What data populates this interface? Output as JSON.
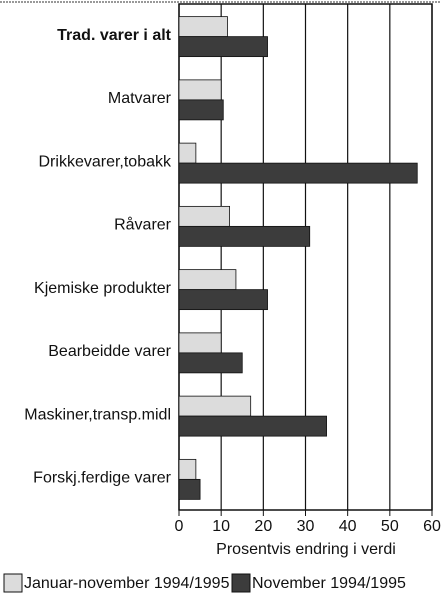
{
  "chart_data": {
    "type": "bar",
    "orientation": "horizontal",
    "categories": [
      "Trad. varer i alt",
      "Matvarer",
      "Drikkevarer,tobakk",
      "Råvarer",
      "Kjemiske produkter",
      "Bearbeidde varer",
      "Maskiner,transp.midl",
      "Forskj.ferdige varer"
    ],
    "series": [
      {
        "name": "Januar-november 1994/1995",
        "color": "#dcdcdc",
        "values": [
          11.5,
          10,
          4,
          12,
          13.5,
          10,
          17,
          4
        ]
      },
      {
        "name": "November 1994/1995",
        "color": "#3c3c3c",
        "values": [
          21,
          10.5,
          56.5,
          31,
          21,
          15,
          35,
          5
        ]
      }
    ],
    "xlabel": "Prosentvis endring i verdi",
    "xlim": [
      0,
      60
    ],
    "xticks": [
      0,
      10,
      20,
      30,
      40,
      50,
      60
    ],
    "grid": true,
    "legend": "bottom"
  }
}
